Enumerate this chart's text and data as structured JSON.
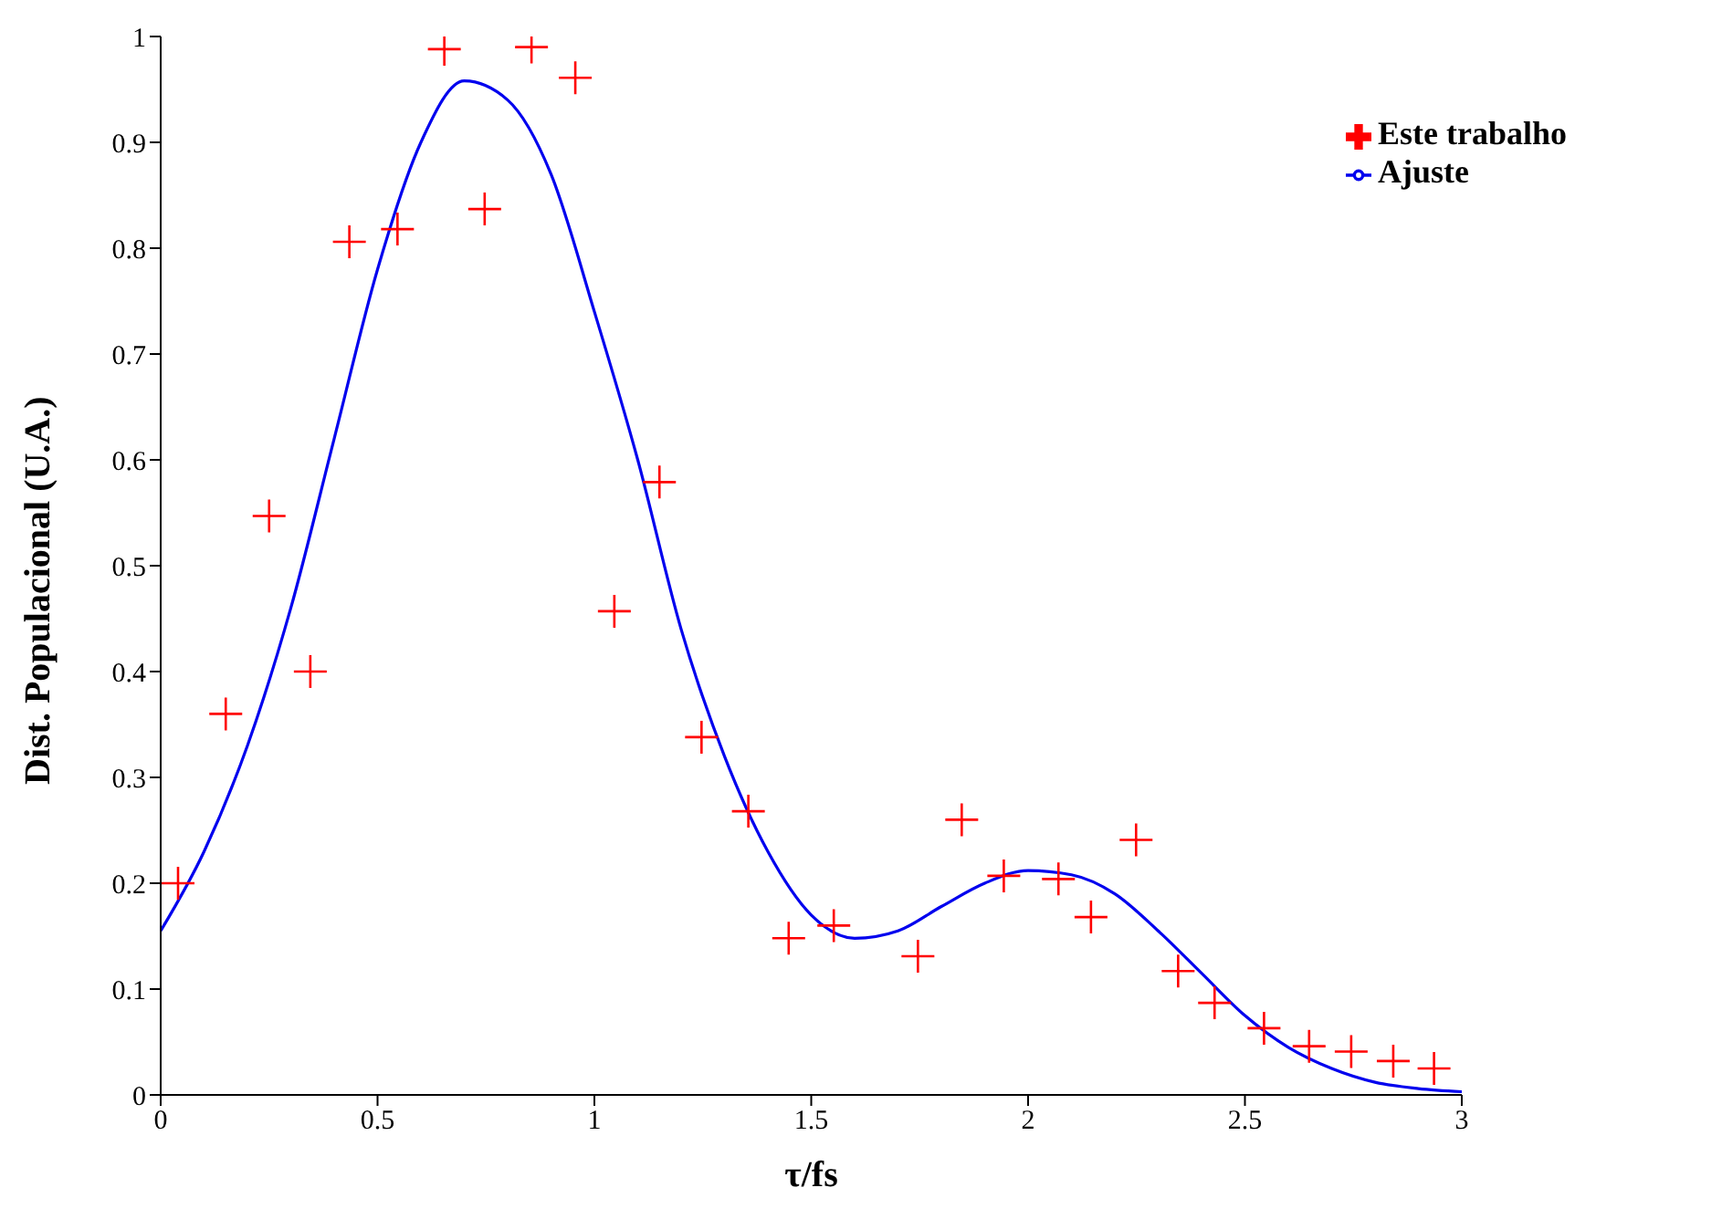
{
  "chart_data": {
    "type": "scatter",
    "xlabel": "τ/fs",
    "ylabel": "Dist. Populacional (U.A.)",
    "xlim": [
      0,
      3
    ],
    "ylim": [
      0,
      1
    ],
    "xticks": [
      0,
      0.5,
      1,
      1.5,
      2,
      2.5,
      3
    ],
    "yticks": [
      0,
      0.1,
      0.2,
      0.3,
      0.4,
      0.5,
      0.6,
      0.7,
      0.8,
      0.9,
      1
    ],
    "grid": false,
    "legend": "top right",
    "series": [
      {
        "name": "Este trabalho",
        "marker": "cross",
        "color": "#ff0000",
        "x": [
          0.04,
          0.15,
          0.25,
          0.345,
          0.435,
          0.546,
          0.654,
          0.747,
          0.855,
          0.956,
          1.046,
          1.15,
          1.247,
          1.355,
          1.448,
          1.552,
          1.746,
          1.847,
          1.944,
          2.07,
          2.145,
          2.249,
          2.346,
          2.43,
          2.544,
          2.648,
          2.745,
          2.842,
          2.936
        ],
        "values": [
          0.2,
          0.36,
          0.547,
          0.4,
          0.806,
          0.818,
          0.988,
          0.837,
          0.99,
          0.961,
          0.457,
          0.579,
          0.338,
          0.268,
          0.148,
          0.16,
          0.131,
          0.26,
          0.207,
          0.204,
          0.168,
          0.241,
          0.117,
          0.087,
          0.063,
          0.046,
          0.041,
          0.032,
          0.025
        ]
      },
      {
        "name": "Ajuste",
        "type": "line",
        "color": "#0000ee",
        "line_style": "solid",
        "x": [
          0,
          0.1,
          0.2,
          0.3,
          0.4,
          0.5,
          0.6,
          0.7,
          0.8,
          0.9,
          1.0,
          1.1,
          1.2,
          1.3,
          1.4,
          1.5,
          1.6,
          1.7,
          1.8,
          1.9,
          2.0,
          2.1,
          2.2,
          2.3,
          2.4,
          2.5,
          2.6,
          2.7,
          2.8,
          2.9,
          3.0
        ],
        "values": [
          0.155,
          0.23,
          0.33,
          0.46,
          0.62,
          0.78,
          0.9,
          0.958,
          0.94,
          0.87,
          0.74,
          0.6,
          0.44,
          0.32,
          0.23,
          0.17,
          0.148,
          0.155,
          0.178,
          0.2,
          0.212,
          0.208,
          0.19,
          0.155,
          0.115,
          0.075,
          0.045,
          0.025,
          0.012,
          0.006,
          0.003
        ]
      }
    ]
  }
}
